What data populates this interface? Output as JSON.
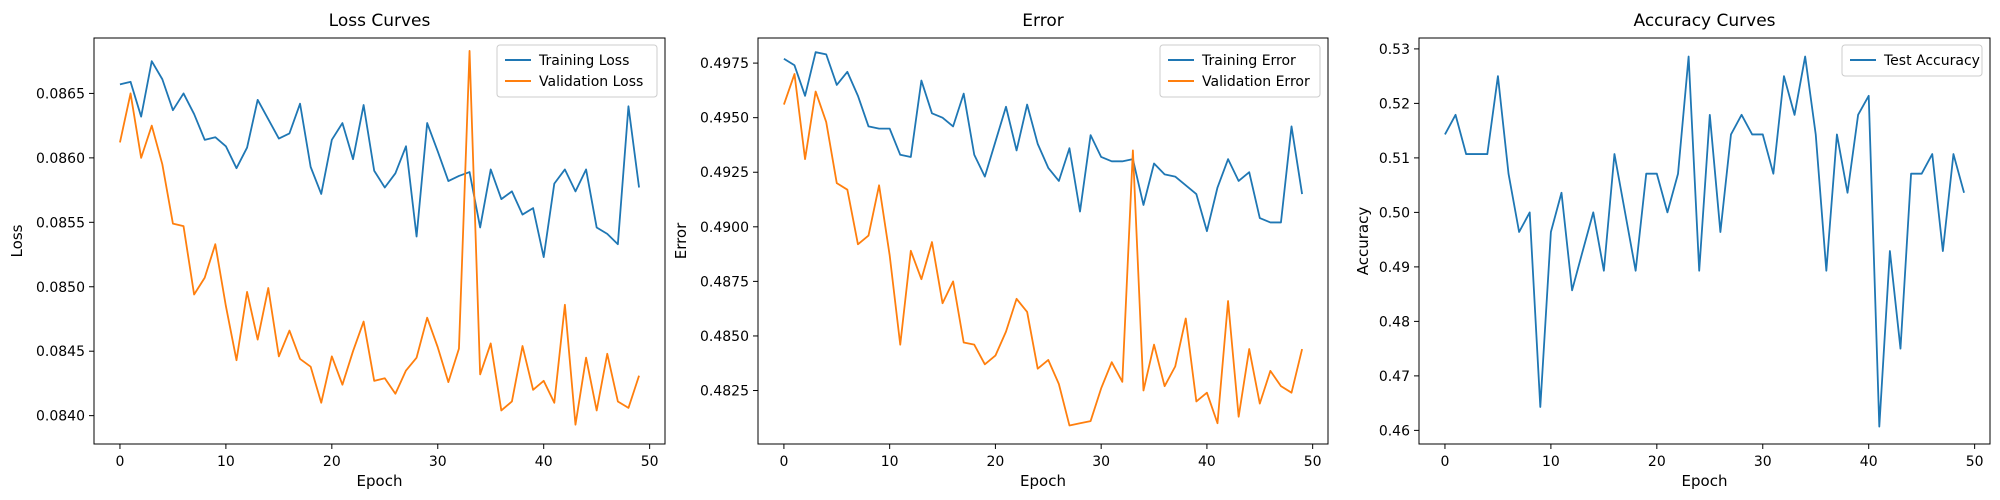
{
  "chart_data": [
    {
      "type": "line",
      "title": "Loss Curves",
      "xlabel": "Epoch",
      "ylabel": "Loss",
      "xlim": [
        -2.45,
        51.45
      ],
      "ylim": [
        0.08378,
        0.08693
      ],
      "xticks": [
        0,
        10,
        20,
        30,
        40,
        50
      ],
      "xtick_labels": [
        "0",
        "10",
        "20",
        "30",
        "40",
        "50"
      ],
      "yticks": [
        0.084,
        0.0845,
        0.085,
        0.0855,
        0.086,
        0.0865
      ],
      "ytick_labels": [
        "0.0840",
        "0.0845",
        "0.0850",
        "0.0855",
        "0.0860",
        "0.0865"
      ],
      "legend": "upper right",
      "grid": false,
      "x": [
        0,
        1,
        2,
        3,
        4,
        5,
        6,
        7,
        8,
        9,
        10,
        11,
        12,
        13,
        14,
        15,
        16,
        17,
        18,
        19,
        20,
        21,
        22,
        23,
        24,
        25,
        26,
        27,
        28,
        29,
        30,
        31,
        32,
        33,
        34,
        35,
        36,
        37,
        38,
        39,
        40,
        41,
        42,
        43,
        44,
        45,
        46,
        47,
        48,
        49
      ],
      "series": [
        {
          "name": "Training Loss",
          "color": "#1f77b4",
          "values": [
            0.08657,
            0.08659,
            0.08632,
            0.08675,
            0.08661,
            0.08637,
            0.0865,
            0.08634,
            0.08614,
            0.08616,
            0.08609,
            0.08592,
            0.08608,
            0.08645,
            0.0863,
            0.08615,
            0.08619,
            0.08642,
            0.08593,
            0.08572,
            0.08614,
            0.08627,
            0.08599,
            0.08641,
            0.0859,
            0.08577,
            0.08588,
            0.08609,
            0.08539,
            0.08627,
            0.08605,
            0.08582,
            0.08586,
            0.08589,
            0.08546,
            0.08591,
            0.08568,
            0.08574,
            0.08556,
            0.08561,
            0.08523,
            0.0858,
            0.08591,
            0.08574,
            0.08591,
            0.08546,
            0.08541,
            0.08533,
            0.0864,
            0.08577
          ]
        },
        {
          "name": "Validation Loss",
          "color": "#ff7f0e",
          "values": [
            0.08612,
            0.0865,
            0.086,
            0.08625,
            0.08595,
            0.08549,
            0.08547,
            0.08494,
            0.08507,
            0.08533,
            0.08485,
            0.08443,
            0.08496,
            0.08459,
            0.08499,
            0.08446,
            0.08466,
            0.08444,
            0.08438,
            0.0841,
            0.08446,
            0.08424,
            0.0845,
            0.08473,
            0.08427,
            0.08429,
            0.08417,
            0.08435,
            0.08445,
            0.08476,
            0.08453,
            0.08426,
            0.08452,
            0.08683,
            0.08432,
            0.08456,
            0.08404,
            0.08411,
            0.08454,
            0.0842,
            0.08427,
            0.0841,
            0.08486,
            0.08393,
            0.08445,
            0.08404,
            0.08448,
            0.08411,
            0.08406,
            0.08431
          ]
        }
      ]
    },
    {
      "type": "line",
      "title": "Error",
      "xlabel": "Epoch",
      "ylabel": "Error",
      "xlim": [
        -2.45,
        51.45
      ],
      "ylim": [
        0.48005,
        0.49865
      ],
      "xticks": [
        0,
        10,
        20,
        30,
        40,
        50
      ],
      "xtick_labels": [
        "0",
        "10",
        "20",
        "30",
        "40",
        "50"
      ],
      "yticks": [
        0.4825,
        0.485,
        0.4875,
        0.49,
        0.4925,
        0.495,
        0.4975
      ],
      "ytick_labels": [
        "0.4825",
        "0.4850",
        "0.4875",
        "0.4900",
        "0.4925",
        "0.4950",
        "0.4975"
      ],
      "legend": "upper right",
      "grid": false,
      "x": [
        0,
        1,
        2,
        3,
        4,
        5,
        6,
        7,
        8,
        9,
        10,
        11,
        12,
        13,
        14,
        15,
        16,
        17,
        18,
        19,
        20,
        21,
        22,
        23,
        24,
        25,
        26,
        27,
        28,
        29,
        30,
        31,
        32,
        33,
        34,
        35,
        36,
        37,
        38,
        39,
        40,
        41,
        42,
        43,
        44,
        45,
        46,
        47,
        48,
        49
      ],
      "series": [
        {
          "name": "Training Error",
          "color": "#1f77b4",
          "values": [
            0.4977,
            0.4974,
            0.496,
            0.498,
            0.4979,
            0.4965,
            0.4971,
            0.496,
            0.4946,
            0.4945,
            0.4945,
            0.4933,
            0.4932,
            0.4967,
            0.4952,
            0.495,
            0.4946,
            0.4961,
            0.4933,
            0.4923,
            0.4939,
            0.4955,
            0.4935,
            0.4956,
            0.4938,
            0.4927,
            0.4921,
            0.4936,
            0.4907,
            0.4942,
            0.4932,
            0.493,
            0.493,
            0.4931,
            0.491,
            0.4929,
            0.4924,
            0.4923,
            0.4919,
            0.4915,
            0.4898,
            0.4918,
            0.4931,
            0.4921,
            0.4925,
            0.4904,
            0.4902,
            0.4902,
            0.4946,
            0.4915
          ]
        },
        {
          "name": "Validation Error",
          "color": "#ff7f0e",
          "values": [
            0.4956,
            0.497,
            0.4931,
            0.4962,
            0.4948,
            0.492,
            0.4917,
            0.4892,
            0.4896,
            0.4919,
            0.4887,
            0.4846,
            0.4889,
            0.4876,
            0.4893,
            0.4865,
            0.4875,
            0.4847,
            0.4846,
            0.4837,
            0.4841,
            0.4852,
            0.4867,
            0.4861,
            0.4835,
            0.4839,
            0.4828,
            0.4809,
            0.481,
            0.4811,
            0.4826,
            0.4838,
            0.4829,
            0.4935,
            0.4825,
            0.4846,
            0.4827,
            0.4836,
            0.4858,
            0.482,
            0.4824,
            0.481,
            0.4866,
            0.4813,
            0.4844,
            0.4819,
            0.4834,
            0.4827,
            0.4824,
            0.4844
          ]
        }
      ]
    },
    {
      "type": "line",
      "title": "Accuracy Curves",
      "xlabel": "Epoch",
      "ylabel": "Accuracy",
      "xlim": [
        -2.45,
        51.45
      ],
      "ylim": [
        0.4575,
        0.532
      ],
      "xticks": [
        0,
        10,
        20,
        30,
        40,
        50
      ],
      "xtick_labels": [
        "0",
        "10",
        "20",
        "30",
        "40",
        "50"
      ],
      "yticks": [
        0.46,
        0.47,
        0.48,
        0.49,
        0.5,
        0.51,
        0.52,
        0.53
      ],
      "ytick_labels": [
        "0.46",
        "0.47",
        "0.48",
        "0.49",
        "0.50",
        "0.51",
        "0.52",
        "0.53"
      ],
      "legend": "upper right",
      "grid": false,
      "x": [
        0,
        1,
        2,
        3,
        4,
        5,
        6,
        7,
        8,
        9,
        10,
        11,
        12,
        13,
        14,
        15,
        16,
        17,
        18,
        19,
        20,
        21,
        22,
        23,
        24,
        25,
        26,
        27,
        28,
        29,
        30,
        31,
        32,
        33,
        34,
        35,
        36,
        37,
        38,
        39,
        40,
        41,
        42,
        43,
        44,
        45,
        46,
        47,
        48,
        49
      ],
      "series": [
        {
          "name": "Test Accuracy",
          "color": "#1f77b4",
          "values": [
            0.5143,
            0.5179,
            0.5107,
            0.5107,
            0.5107,
            0.525,
            0.5071,
            0.4964,
            0.5,
            0.4643,
            0.4964,
            0.5036,
            0.4857,
            0.4929,
            0.5,
            0.4893,
            0.5107,
            0.5,
            0.4893,
            0.5071,
            0.5071,
            0.5,
            0.5071,
            0.5286,
            0.4893,
            0.5179,
            0.4964,
            0.5143,
            0.5179,
            0.5143,
            0.5143,
            0.5071,
            0.525,
            0.5179,
            0.5286,
            0.5143,
            0.4893,
            0.5143,
            0.5036,
            0.5179,
            0.5214,
            0.4607,
            0.4929,
            0.475,
            0.5071,
            0.5071,
            0.5107,
            0.4929,
            0.5107,
            0.5036
          ]
        }
      ]
    }
  ]
}
